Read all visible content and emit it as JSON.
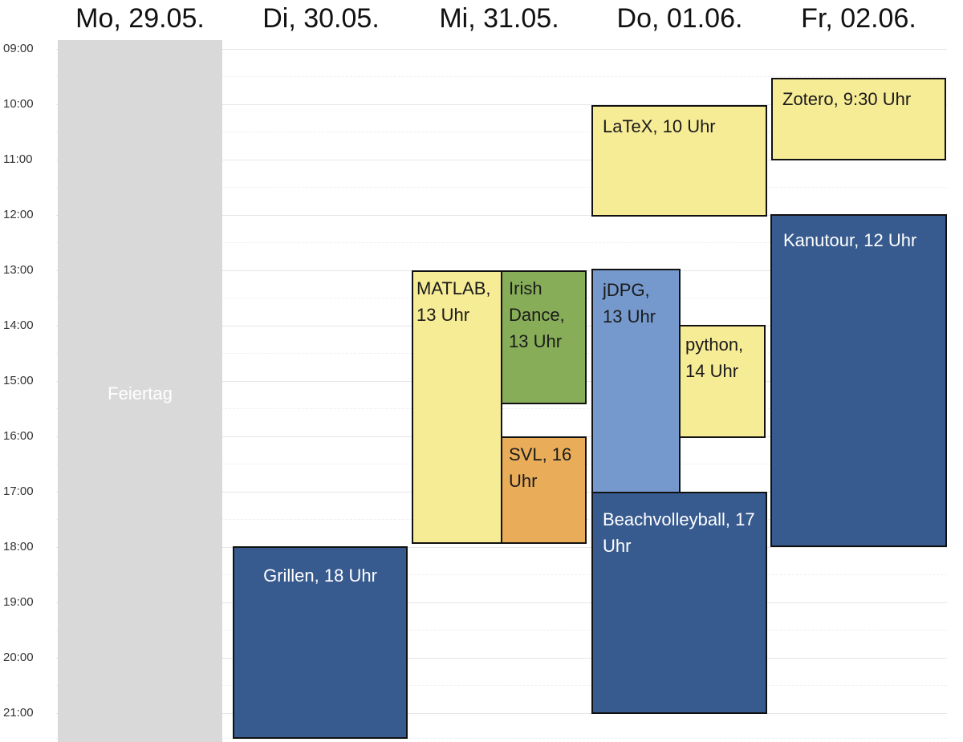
{
  "days": [
    "Mo, 29.05.",
    "Di, 30.05.",
    "Mi, 31.05.",
    "Do, 01.06.",
    "Fr, 02.06."
  ],
  "times": [
    "09:00",
    "10:00",
    "11:00",
    "12:00",
    "13:00",
    "14:00",
    "15:00",
    "16:00",
    "17:00",
    "18:00",
    "19:00",
    "20:00",
    "21:00"
  ],
  "holiday": {
    "label": "Feiertag"
  },
  "events": {
    "grillen": "Grillen, 18 Uhr",
    "matlab": "MATLAB, 13 Uhr",
    "irish": "Irish Dance, 13 Uhr",
    "svl": "SVL, 16 Uhr",
    "latex": "LaTeX, 10 Uhr",
    "jdpg": "jDPG, 13 Uhr",
    "python": "python, 14 Uhr",
    "beach": "Beachvolleyball, 17 Uhr",
    "zotero": "Zotero, 9:30 Uhr",
    "kanu": "Kanutour, 12 Uhr"
  },
  "colors": {
    "yellow": "#f7ec96",
    "green": "#88ad58",
    "orange": "#e9ad5a",
    "lightblue": "#7599cc",
    "darkblue": "#385b8f",
    "holiday": "#d9d9d9"
  }
}
